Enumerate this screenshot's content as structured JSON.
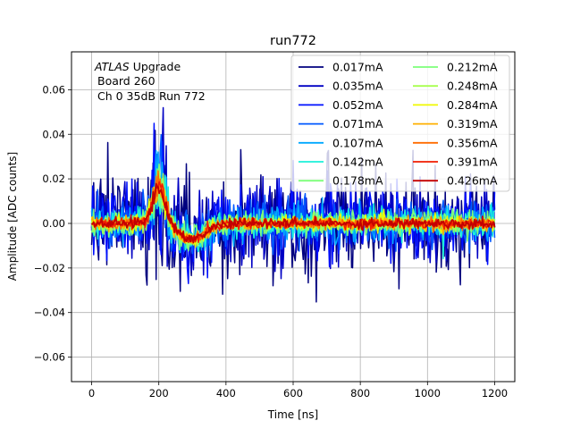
{
  "chart_data": {
    "type": "line",
    "title": "run772",
    "xlabel": "Time [ns]",
    "ylabel": "Amplitude [ADC counts]",
    "xlim": [
      -60,
      1260
    ],
    "ylim": [
      -0.071,
      0.077
    ],
    "xticks": [
      0,
      200,
      400,
      600,
      800,
      1000,
      1200
    ],
    "yticks": [
      -0.06,
      -0.04,
      -0.02,
      0.0,
      0.02,
      0.04,
      0.06
    ],
    "ytick_labels": [
      "−0.06",
      "−0.04",
      "−0.02",
      "0.00",
      "0.02",
      "0.04",
      "0.06"
    ],
    "grid": true,
    "legend_position": "top-right",
    "legend_columns": 2,
    "annotation": {
      "line1_italic": "ATLAS",
      "line1_rest": " Upgrade",
      "line2": "Board 260",
      "line3": "Ch 0 35dB  Run 772"
    },
    "waveform_model": {
      "time_range_ns": [
        0,
        1200
      ],
      "sample_step_ns": 3,
      "pulse_peak_time_ns": 200,
      "pulse_peak_amplitude": 0.017,
      "undershoot_time_ns": 300,
      "undershoot_amplitude": -0.007
    },
    "series": [
      {
        "name": "0.017mA",
        "color": "#00007f",
        "noise": 0.022
      },
      {
        "name": "0.035mA",
        "color": "#0000c4",
        "noise": 0.017
      },
      {
        "name": "0.052mA",
        "color": "#0010ff",
        "noise": 0.013
      },
      {
        "name": "0.071mA",
        "color": "#0058ff",
        "noise": 0.01
      },
      {
        "name": "0.107mA",
        "color": "#00a8ff",
        "noise": 0.0075
      },
      {
        "name": "0.142mA",
        "color": "#1cf0da",
        "noise": 0.006
      },
      {
        "name": "0.178mA",
        "color": "#7dff7a",
        "noise": 0.0048
      },
      {
        "name": "0.212mA",
        "color": "#7dff7a",
        "noise": 0.004
      },
      {
        "name": "0.248mA",
        "color": "#a8ff4f",
        "noise": 0.0034
      },
      {
        "name": "0.284mA",
        "color": "#f0f900",
        "noise": 0.003
      },
      {
        "name": "0.319mA",
        "color": "#ffb000",
        "noise": 0.0027
      },
      {
        "name": "0.356mA",
        "color": "#ff6c00",
        "noise": 0.0024
      },
      {
        "name": "0.391mA",
        "color": "#f11c00",
        "noise": 0.0022
      },
      {
        "name": "0.426mA",
        "color": "#c40000",
        "noise": 0.002
      }
    ]
  }
}
